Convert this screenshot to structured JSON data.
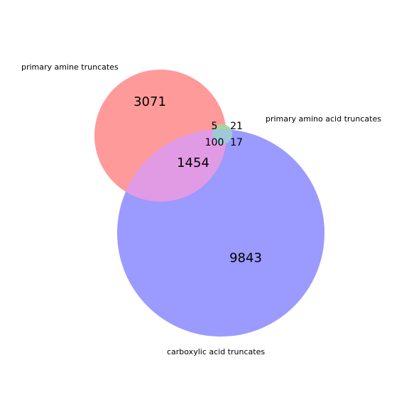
{
  "diagram": {
    "type": "venn3",
    "sets": [
      {
        "id": "A",
        "label": "primary amine truncates",
        "color": "#ff9a9a"
      },
      {
        "id": "B",
        "label": "primary amino acid truncates",
        "color": "#a8d5a2"
      },
      {
        "id": "C",
        "label": "carboxylic acid truncates",
        "color": "#9a9aff"
      }
    ],
    "regions": {
      "A_only": "3071",
      "B_only": "21",
      "C_only": "9843",
      "A_B": "5",
      "A_C": "1454",
      "B_C": "17",
      "A_B_C": "100"
    },
    "overlap_color": "#e19ae4"
  }
}
